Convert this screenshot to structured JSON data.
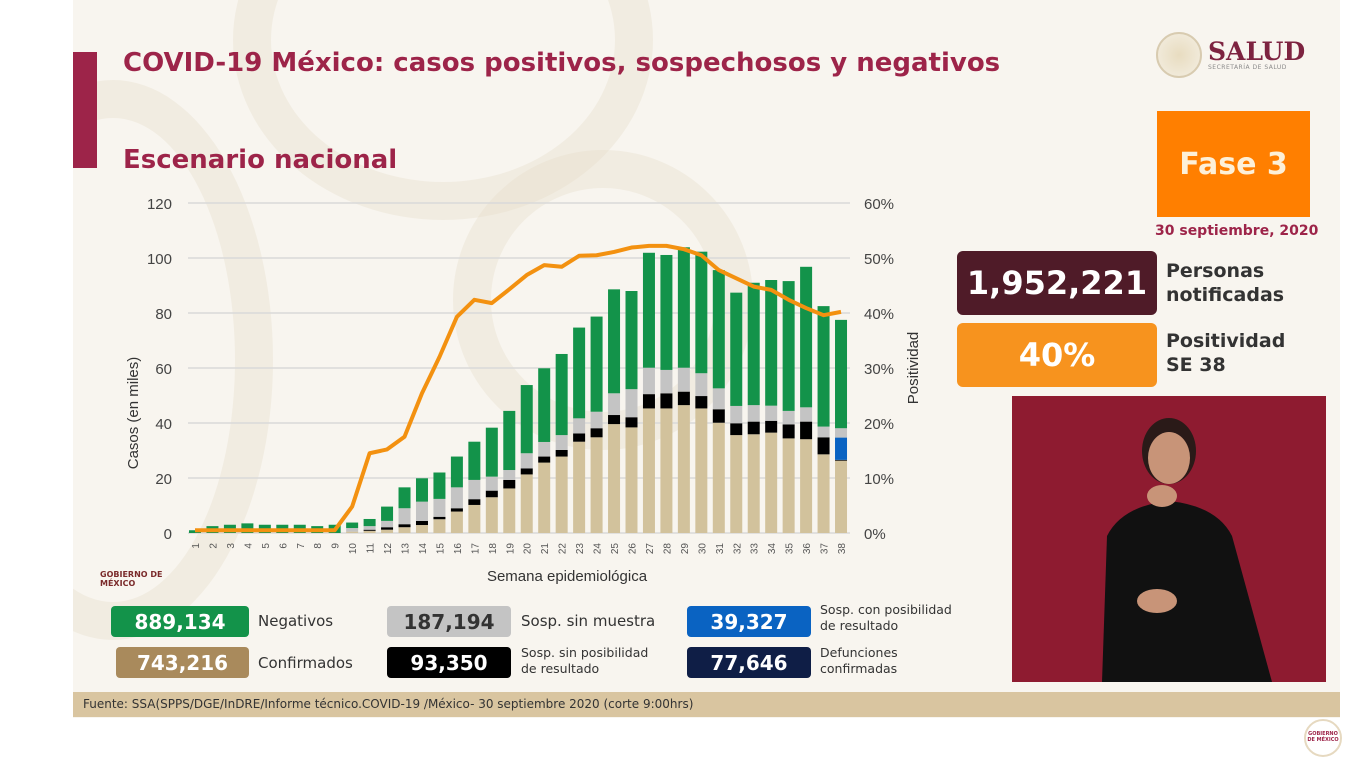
{
  "header": {
    "title": "COVID-19 México: casos positivos, sospechosos y negativos",
    "subtitle": "Escenario nacional"
  },
  "logo": {
    "name": "SALUD",
    "sub": "SECRETARÍA DE SALUD"
  },
  "phase": {
    "label": "Fase 3",
    "date": "30 septiembre, 2020"
  },
  "kpis": [
    {
      "value": "1,952,221",
      "label1": "Personas",
      "label2": "notificadas"
    },
    {
      "value": "40%",
      "label1": "Positividad",
      "label2": "SE 38"
    }
  ],
  "legend": [
    {
      "value": "889,134",
      "label": "Negativos",
      "color": "#13934a"
    },
    {
      "value": "743,216",
      "label": "Confirmados",
      "color": "#a98a5c"
    },
    {
      "value": "187,194",
      "label": "Sosp. sin muestra",
      "color": "#c4c4c4"
    },
    {
      "value": "93,350",
      "label1": "Sosp. sin posibilidad",
      "label2": "de resultado",
      "color": "#000000"
    },
    {
      "value": "39,327",
      "label1": "Sosp. con posibilidad",
      "label2": "de resultado",
      "color": "#0a63c2"
    },
    {
      "value": "77,646",
      "label1": "Defunciones",
      "label2": "confirmadas",
      "color": "#0f1e46"
    }
  ],
  "footer": "Fuente: SSA(SPPS/DGE/InDRE/Informe técnico.COVID-19 /México- 30 septiembre 2020 (corte 9:00hrs)",
  "gob_badge": "GOBIERNO DE MÉXICO",
  "chart_data": {
    "type": "bar",
    "stacked": true,
    "xlabel": "Semana epidemiológica",
    "ylabel": "Casos (en miles)",
    "y2label": "Positividad",
    "ylim": [
      0,
      120
    ],
    "y2lim": [
      0,
      60
    ],
    "yticks": [
      "0",
      "20",
      "40",
      "60",
      "80",
      "100",
      "120"
    ],
    "y2ticks": [
      "0%",
      "10%",
      "20%",
      "30%",
      "40%",
      "50%",
      "60%"
    ],
    "categories": [
      "1",
      "2",
      "3",
      "4",
      "5",
      "6",
      "7",
      "8",
      "9",
      "10",
      "11",
      "12",
      "13",
      "14",
      "15",
      "16",
      "17",
      "18",
      "19",
      "20",
      "21",
      "22",
      "23",
      "24",
      "25",
      "26",
      "27",
      "28",
      "29",
      "30",
      "31",
      "32",
      "33",
      "34",
      "35",
      "36",
      "37",
      "38"
    ],
    "series": [
      {
        "name": "Confirmados",
        "color": "#d2c29c",
        "values": [
          0,
          0,
          0,
          0,
          0,
          0,
          0,
          0,
          0,
          0.5,
          0.8,
          1.2,
          2.1,
          2.9,
          5,
          7.8,
          10.2,
          13,
          16.2,
          21.3,
          25.6,
          27.8,
          33.2,
          34.8,
          39.6,
          38.4,
          45.3,
          45.3,
          46.5,
          45.3,
          40.1,
          35.6,
          35.9,
          36.5,
          34.4,
          34.1,
          28.6,
          26.3
        ]
      },
      {
        "name": "Sosp. sin posibilidad de resultado",
        "color": "#000000",
        "values": [
          0,
          0,
          0,
          0,
          0,
          0,
          0,
          0,
          0,
          0,
          0.4,
          0.9,
          1.1,
          1.5,
          0.9,
          1.2,
          2.1,
          2.4,
          3.1,
          2.2,
          2.2,
          2.4,
          3,
          3.3,
          3.3,
          3.7,
          5.2,
          5.5,
          4.9,
          4.5,
          4.9,
          4.3,
          4.6,
          4.3,
          5.1,
          6.4,
          6.2,
          0.3
        ]
      },
      {
        "name": "Sosp. con posibilidad de resultado",
        "color": "#0a63c2",
        "values": [
          0,
          0,
          0,
          0,
          0,
          0,
          0,
          0,
          0,
          0,
          0,
          0,
          0,
          0,
          0,
          0,
          0,
          0,
          0,
          0,
          0,
          0,
          0,
          0,
          0,
          0,
          0,
          0,
          0,
          0,
          0,
          0,
          0,
          0,
          0,
          0,
          0,
          8.1
        ]
      },
      {
        "name": "Sosp. sin muestra",
        "color": "#c4c4c4",
        "values": [
          0,
          0,
          0,
          0,
          0,
          0,
          0,
          0,
          0,
          1.3,
          1.3,
          2.3,
          5.8,
          7,
          6.5,
          7.6,
          7,
          5.1,
          3.6,
          5.5,
          5.3,
          5.4,
          5.5,
          6,
          7.9,
          10.2,
          9.6,
          8.5,
          8.7,
          8.3,
          7.6,
          6.3,
          6,
          5.5,
          4.9,
          5.2,
          3.9,
          3.4
        ]
      },
      {
        "name": "Negativos",
        "color": "#13934a",
        "values": [
          1,
          2.5,
          3,
          3.5,
          3,
          3,
          3,
          2.5,
          3,
          2,
          2.6,
          5.2,
          7.6,
          8.5,
          9.6,
          11.2,
          13.9,
          17.8,
          21.5,
          24.8,
          26.8,
          29.5,
          33,
          34.6,
          37.8,
          35.7,
          41.8,
          41.8,
          43.8,
          44.2,
          43,
          41.2,
          44.5,
          45.7,
          47.2,
          51.1,
          43.8,
          39.4
        ]
      }
    ],
    "line": {
      "name": "Positividad",
      "color": "#f39110",
      "values": [
        0.5,
        0.5,
        0.5,
        0.5,
        0.5,
        0.5,
        0.5,
        0.5,
        0.5,
        4.8,
        14.5,
        15.2,
        17.5,
        25.4,
        32,
        39.3,
        42.4,
        41.8,
        44.3,
        46.9,
        48.7,
        48.4,
        50.4,
        50.5,
        51.1,
        51.9,
        52.2,
        52.2,
        51.6,
        50.5,
        47.8,
        46.3,
        44.8,
        44.2,
        42.4,
        40.9,
        39.6,
        40.2
      ]
    },
    "grid": true
  }
}
